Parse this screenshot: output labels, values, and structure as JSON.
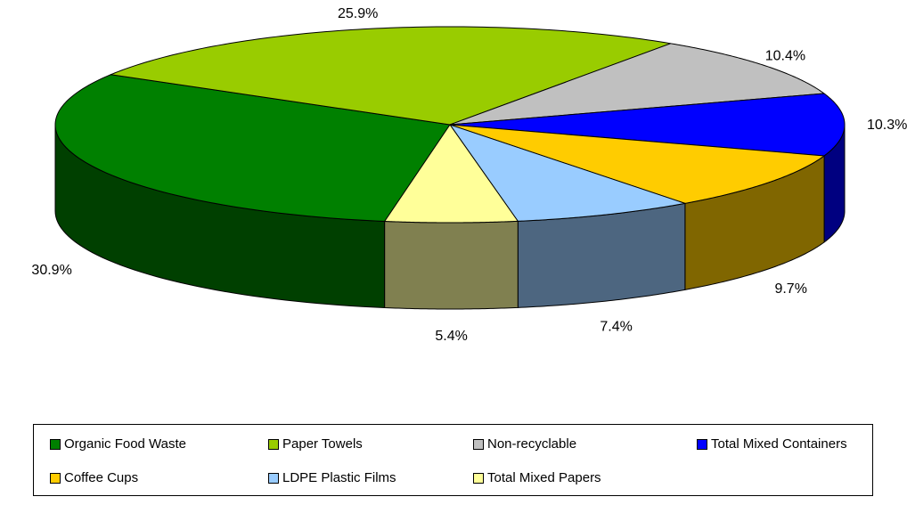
{
  "chart_data": {
    "type": "pie",
    "style": "3d",
    "title": "",
    "categories": [
      "Organic Food Waste",
      "Paper Towels",
      "Non-recyclable",
      "Total Mixed Containers",
      "Coffee Cups",
      "LDPE Plastic Films",
      "Total Mixed Papers"
    ],
    "values": [
      30.9,
      25.9,
      10.4,
      10.3,
      9.7,
      7.4,
      5.4
    ],
    "labels": [
      "30.9%",
      "25.9%",
      "10.4%",
      "10.3%",
      "9.7%",
      "7.4%",
      "5.4%"
    ],
    "colors": [
      "#008000",
      "#99CC00",
      "#C0C0C0",
      "#0000FF",
      "#FFCC00",
      "#99CCFF",
      "#FFFF99"
    ],
    "side_colors": [
      "#004000",
      "#4D6600",
      "#606060",
      "#000080",
      "#806600",
      "#4D6680",
      "#808050"
    ],
    "legend_position": "bottom"
  }
}
